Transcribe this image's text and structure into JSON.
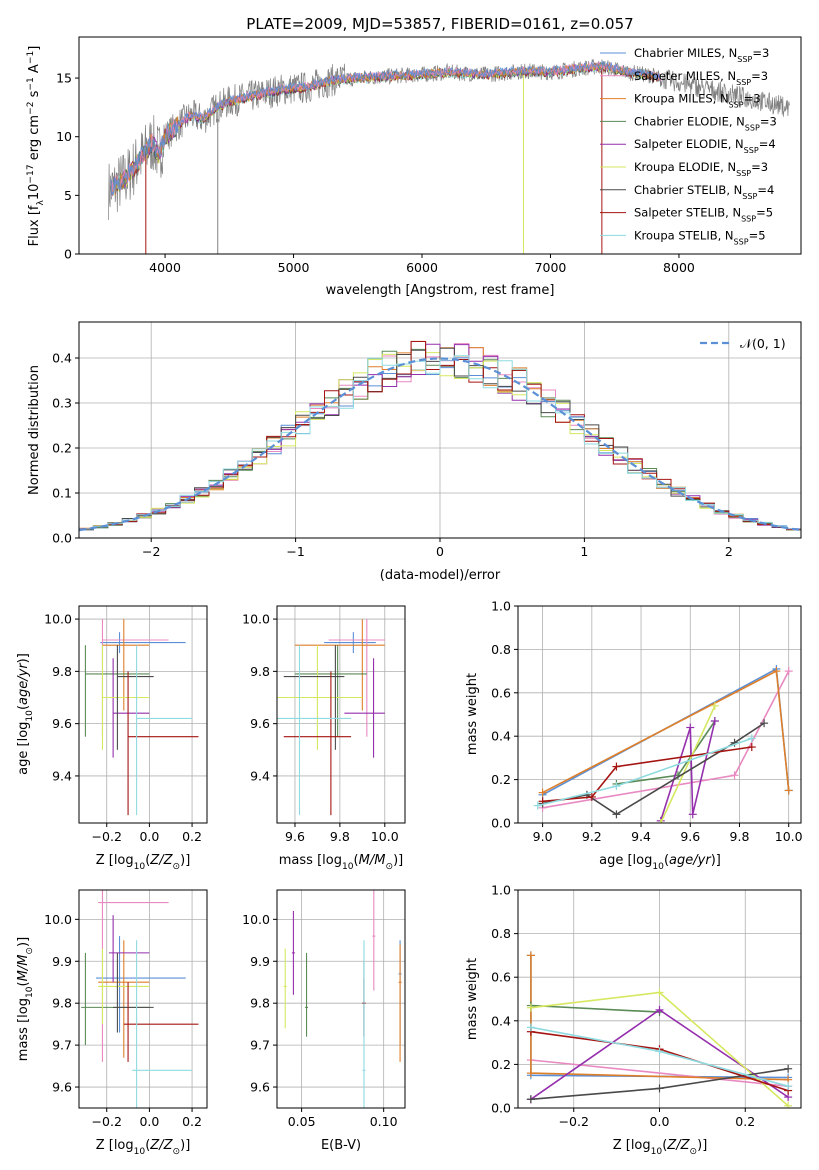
{
  "figure_title": "PLATE=2009, MJD=53857, FIBERID=0161, z=0.057",
  "colors": {
    "chabrier_miles": "#5b8fd6",
    "salpeter_miles": "#e889c2",
    "kroupa_miles": "#de7f2a",
    "chabrier_elodie": "#5a8a56",
    "salpeter_elodie": "#952fad",
    "kroupa_elodie": "#d6e860",
    "chabrier_stelib": "#4a4a4a",
    "salpeter_stelib": "#a41512",
    "kroupa_stelib": "#8fdbe0",
    "data": "#808080"
  },
  "chart_data": [
    {
      "id": "spectrum",
      "type": "line",
      "xlim": [
        3330,
        8950
      ],
      "ylim": [
        0,
        18.5
      ],
      "xticks": [
        "4000",
        "5000",
        "6000",
        "7000",
        "8000"
      ],
      "yticks": [
        "0",
        "5",
        "10",
        "15"
      ],
      "xlabel": "wavelength [Angstrom, rest frame]",
      "legend_position": "upper-right",
      "grid": false,
      "legend": [
        {
          "name": "Chabrier MILES, N",
          "sub": "SSP",
          "n": "=3",
          "color_key": "chabrier_miles"
        },
        {
          "name": "Salpeter MILES, N",
          "sub": "SSP",
          "n": "=3",
          "color_key": "salpeter_miles"
        },
        {
          "name": "Kroupa MILES, N",
          "sub": "SSP",
          "n": "=3",
          "color_key": "kroupa_miles"
        },
        {
          "name": "Chabrier ELODIE, N",
          "sub": "SSP",
          "n": "=3",
          "color_key": "chabrier_elodie"
        },
        {
          "name": "Salpeter ELODIE, N",
          "sub": "SSP",
          "n": "=4",
          "color_key": "salpeter_elodie"
        },
        {
          "name": "Kroupa ELODIE, N",
          "sub": "SSP",
          "n": "=3",
          "color_key": "kroupa_elodie"
        },
        {
          "name": "Chabrier STELIB, N",
          "sub": "SSP",
          "n": "=4",
          "color_key": "chabrier_stelib"
        },
        {
          "name": "Salpeter STELIB, N",
          "sub": "SSP",
          "n": "=5",
          "color_key": "salpeter_stelib"
        },
        {
          "name": "Kroupa STELIB, N",
          "sub": "SSP",
          "n": "=5",
          "color_key": "kroupa_stelib"
        }
      ],
      "continuum": [
        [
          3580,
          5.5
        ],
        [
          3700,
          6.5
        ],
        [
          3800,
          8
        ],
        [
          3900,
          9.5
        ],
        [
          3950,
          8.5
        ],
        [
          4000,
          10
        ],
        [
          4100,
          11
        ],
        [
          4200,
          11.8
        ],
        [
          4300,
          11.5
        ],
        [
          4400,
          12.5
        ],
        [
          4500,
          13
        ],
        [
          4700,
          13.5
        ],
        [
          4900,
          14
        ],
        [
          5100,
          14.2
        ],
        [
          5200,
          14.5
        ],
        [
          5300,
          14.8
        ],
        [
          5500,
          15
        ],
        [
          5800,
          15.2
        ],
        [
          6000,
          15.3
        ],
        [
          6200,
          15.5
        ],
        [
          6500,
          15.3
        ],
        [
          6800,
          15.6
        ],
        [
          7000,
          15.5
        ],
        [
          7200,
          15.8
        ],
        [
          7400,
          16
        ],
        [
          7600,
          15.5
        ],
        [
          7800,
          15.2
        ],
        [
          7850,
          15
        ]
      ],
      "model_xrange": [
        3580,
        7860
      ],
      "data_xrange": [
        3560,
        8860
      ],
      "spike_x": [
        4410,
        6790
      ],
      "dip_x": [
        3850,
        7400
      ]
    },
    {
      "id": "residuals",
      "type": "bar",
      "xlim": [
        -2.5,
        2.5
      ],
      "ylim": [
        0,
        0.48
      ],
      "xticks": [
        -2,
        -1,
        0,
        1,
        2
      ],
      "yticks": [
        "0.0",
        "0.1",
        "0.2",
        "0.3",
        "0.4"
      ],
      "xlabel": "(data-model)/error",
      "ylabel": "Normed distribution",
      "grid": true,
      "legend_position": "upper-right",
      "legend": [
        {
          "name": "𝒩(0, 1)",
          "color": "#5b8fd6"
        }
      ],
      "bin_width": 0.1
    },
    {
      "id": "age_vs_Z",
      "type": "scatter",
      "xlim": [
        -0.33,
        0.27
      ],
      "ylim": [
        9.22,
        10.05
      ],
      "xticks": [
        -0.2,
        0.0,
        0.2
      ],
      "yticks": [
        "9.4",
        "9.6",
        "9.8",
        "10.0"
      ],
      "xlabel": "Z [log",
      "ylabel": "age  [log",
      "grid": true
    },
    {
      "id": "age_vs_mass",
      "type": "scatter",
      "xlim": [
        9.52,
        10.09
      ],
      "ylim": [
        9.22,
        10.05
      ],
      "xticks": [
        9.6,
        9.8,
        10.0
      ],
      "yticks": [
        "9.4",
        "9.6",
        "9.8",
        "10.0"
      ],
      "xlabel": "mass [log",
      "grid": true
    },
    {
      "id": "massweight_vs_age",
      "type": "line",
      "xlim": [
        8.9,
        10.05
      ],
      "ylim": [
        0,
        1
      ],
      "xticks": [
        9.0,
        9.2,
        9.4,
        9.6,
        9.8,
        10.0
      ],
      "yticks": [
        "0.0",
        "0.2",
        "0.4",
        "0.6",
        "0.8",
        "1.0"
      ],
      "xlabel": "age  [log",
      "ylabel": "mass weight",
      "grid": true
    },
    {
      "id": "mass_vs_Z",
      "type": "scatter",
      "xlim": [
        -0.33,
        0.27
      ],
      "ylim": [
        9.55,
        10.07
      ],
      "xticks": [
        -0.2,
        0.0,
        0.2
      ],
      "yticks": [
        "9.6",
        "9.7",
        "9.8",
        "9.9",
        "10.0"
      ],
      "xlabel": "Z [log",
      "ylabel": "mass [log",
      "grid": true
    },
    {
      "id": "mass_vs_ebv",
      "type": "scatter",
      "xlim": [
        0.035,
        0.113
      ],
      "ylim": [
        9.55,
        10.07
      ],
      "xticks": [
        0.05,
        0.1
      ],
      "yticks": [
        "9.6",
        "9.7",
        "9.8",
        "9.9",
        "10.0"
      ],
      "xlabel": "E(B-V)",
      "grid": true
    },
    {
      "id": "massweight_vs_Z",
      "type": "line",
      "xlim": [
        -0.33,
        0.33
      ],
      "ylim": [
        0,
        1
      ],
      "xticks": [
        -0.2,
        0.0,
        0.2
      ],
      "yticks": [
        "0.0",
        "0.2",
        "0.4",
        "0.6",
        "0.8",
        "1.0"
      ],
      "xlabel": "Z [log",
      "ylabel": "mass weight",
      "grid": true
    }
  ],
  "models": [
    {
      "key": "chabrier_miles",
      "age": [
        9.91,
        9.87,
        9.95
      ],
      "Z": [
        -0.23,
        -0.15,
        0.17
      ],
      "mass": [
        9.86,
        9.73,
        9.96
      ],
      "massZ": [
        9.86,
        9.73,
        9.96
      ],
      "Zc": [
        -0.23,
        -0.14,
        0.17
      ],
      "ebv": 0.11,
      "ebv_mass": [
        9.87,
        9.7,
        9.95
      ],
      "mw_age": [
        [
          9.0,
          0.13
        ],
        [
          9.95,
          0.71
        ],
        [
          10.0,
          0.15
        ]
      ],
      "mw_Z": [
        [
          -0.3,
          0.7
        ],
        [
          -0.3,
          0.15
        ],
        [
          0.3,
          0.14
        ]
      ]
    },
    {
      "key": "salpeter_miles",
      "age": [
        9.92,
        9.55,
        10.0
      ],
      "Z": [
        -0.22,
        -0.2,
        0.09
      ],
      "mass": [
        9.92,
        9.75,
        10.0
      ],
      "massZ": [
        10.04,
        9.66,
        10.07
      ],
      "Zc": [
        -0.22,
        -0.22,
        0.09
      ],
      "ebv": 0.094,
      "ebv_mass": [
        9.96,
        9.83,
        10.07
      ],
      "mw_age": [
        [
          9.0,
          0.07
        ],
        [
          9.78,
          0.22
        ],
        [
          10.0,
          0.7
        ]
      ],
      "mw_Z": [
        [
          -0.3,
          0.22
        ],
        [
          0.3,
          0.1
        ]
      ]
    },
    {
      "key": "kroupa_miles",
      "age": [
        9.9,
        9.65,
        10.0
      ],
      "Z": [
        -0.22,
        -0.13,
        0.0
      ],
      "mass": [
        9.9,
        9.6,
        10.0
      ],
      "massZ": [
        9.85,
        9.67,
        9.95
      ],
      "Zc": [
        -0.22,
        -0.12,
        0.0
      ],
      "ebv": 0.11,
      "ebv_mass": [
        9.85,
        9.66,
        9.94
      ],
      "mw_age": [
        [
          9.0,
          0.14
        ],
        [
          9.95,
          0.7
        ],
        [
          10.0,
          0.15
        ]
      ],
      "mw_Z": [
        [
          -0.3,
          0.7
        ],
        [
          -0.3,
          0.16
        ],
        [
          0.3,
          0.13
        ]
      ]
    },
    {
      "key": "chabrier_elodie",
      "age": [
        9.79,
        9.55,
        9.9
      ],
      "Z": [
        -0.16,
        -0.3,
        0.0
      ],
      "mass": [
        9.79,
        9.6,
        9.92
      ],
      "massZ": [
        9.79,
        9.7,
        9.92
      ],
      "Zc": [
        -0.3,
        -0.3,
        0.0
      ],
      "ebv": 0.053,
      "ebv_mass": [
        9.79,
        9.72,
        9.92
      ],
      "mw_age": [
        [
          9.3,
          0.18
        ],
        [
          9.55,
          0.22
        ],
        [
          9.7,
          0.47
        ]
      ],
      "mw_Z": [
        [
          -0.3,
          0.47
        ],
        [
          0.0,
          0.44
        ]
      ]
    },
    {
      "key": "salpeter_elodie",
      "age": [
        9.64,
        9.47,
        9.85
      ],
      "Z": [
        -0.15,
        -0.3,
        0.0
      ],
      "mass": [
        9.95,
        9.82,
        10.0
      ],
      "massZ": [
        9.92,
        9.85,
        10.01
      ],
      "Zc": [
        -0.17,
        -0.17,
        0.0
      ],
      "ebv": 0.045,
      "ebv_mass": [
        9.92,
        9.82,
        10.02
      ],
      "mw_age": [
        [
          9.48,
          0.01
        ],
        [
          9.6,
          0.44
        ],
        [
          9.61,
          0.04
        ],
        [
          9.7,
          0.47
        ]
      ],
      "mw_Z": [
        [
          -0.3,
          0.04
        ],
        [
          0.0,
          0.45
        ],
        [
          0.3,
          0.05
        ]
      ]
    },
    {
      "key": "kroupa_elodie",
      "age": [
        9.7,
        9.5,
        9.9
      ],
      "Z": [
        -0.22,
        -0.2,
        0.0
      ],
      "mass": [
        9.7,
        9.5,
        9.9
      ],
      "massZ": [
        9.84,
        9.75,
        9.93
      ],
      "Zc": [
        -0.22,
        -0.22,
        0.0
      ],
      "ebv": 0.04,
      "ebv_mass": [
        9.84,
        9.74,
        9.93
      ],
      "mw_age": [
        [
          9.48,
          0.0
        ],
        [
          9.7,
          0.54
        ]
      ],
      "mw_Z": [
        [
          -0.3,
          0.46
        ],
        [
          0.0,
          0.53
        ],
        [
          0.3,
          0.01
        ]
      ]
    },
    {
      "key": "chabrier_stelib",
      "age": [
        9.78,
        9.5,
        9.9
      ],
      "Z": [
        -0.2,
        -0.22,
        0.02
      ],
      "mass": [
        9.78,
        9.55,
        9.82
      ],
      "massZ": [
        9.79,
        9.73,
        9.92
      ],
      "Zc": [
        -0.15,
        -0.15,
        -0.1
      ],
      "ebv": 0.088,
      "ebv_mass": [
        9.8,
        9.72,
        9.9
      ],
      "mw_age": [
        [
          9.0,
          0.09
        ],
        [
          9.18,
          0.13
        ],
        [
          9.3,
          0.04
        ],
        [
          9.78,
          0.37
        ],
        [
          9.9,
          0.46
        ]
      ],
      "mw_Z": [
        [
          -0.3,
          0.04
        ],
        [
          0.0,
          0.09
        ],
        [
          0.3,
          0.18
        ]
      ]
    },
    {
      "key": "salpeter_stelib",
      "age": [
        9.55,
        9.25,
        9.8
      ],
      "Z": [
        -0.1,
        -0.1,
        0.23
      ],
      "mass": [
        9.76,
        9.55,
        9.85
      ],
      "massZ": [
        9.75,
        9.66,
        9.85
      ],
      "Zc": [
        -0.1,
        -0.1,
        0.23
      ],
      "ebv": 0.088,
      "ebv_mass": [
        9.8,
        9.72,
        9.86
      ],
      "mw_age": [
        [
          9.0,
          0.1
        ],
        [
          9.2,
          0.12
        ],
        [
          9.3,
          0.26
        ],
        [
          9.85,
          0.35
        ]
      ],
      "mw_Z": [
        [
          -0.3,
          0.35
        ],
        [
          0.0,
          0.27
        ],
        [
          0.3,
          0.08
        ]
      ]
    },
    {
      "key": "kroupa_stelib",
      "age": [
        9.62,
        9.25,
        9.9
      ],
      "Z": [
        -0.04,
        -0.06,
        0.2
      ],
      "mass": [
        9.62,
        9.25,
        9.85
      ],
      "massZ": [
        9.64,
        9.55,
        9.95
      ],
      "Zc": [
        -0.06,
        -0.06,
        0.2
      ],
      "ebv": 0.088,
      "ebv_mass": [
        9.64,
        9.54,
        9.95
      ],
      "mw_age": [
        [
          8.98,
          0.08
        ],
        [
          9.3,
          0.17
        ],
        [
          9.85,
          0.39
        ]
      ],
      "mw_Z": [
        [
          -0.3,
          0.37
        ],
        [
          0.0,
          0.26
        ],
        [
          0.3,
          0.1
        ]
      ]
    }
  ]
}
